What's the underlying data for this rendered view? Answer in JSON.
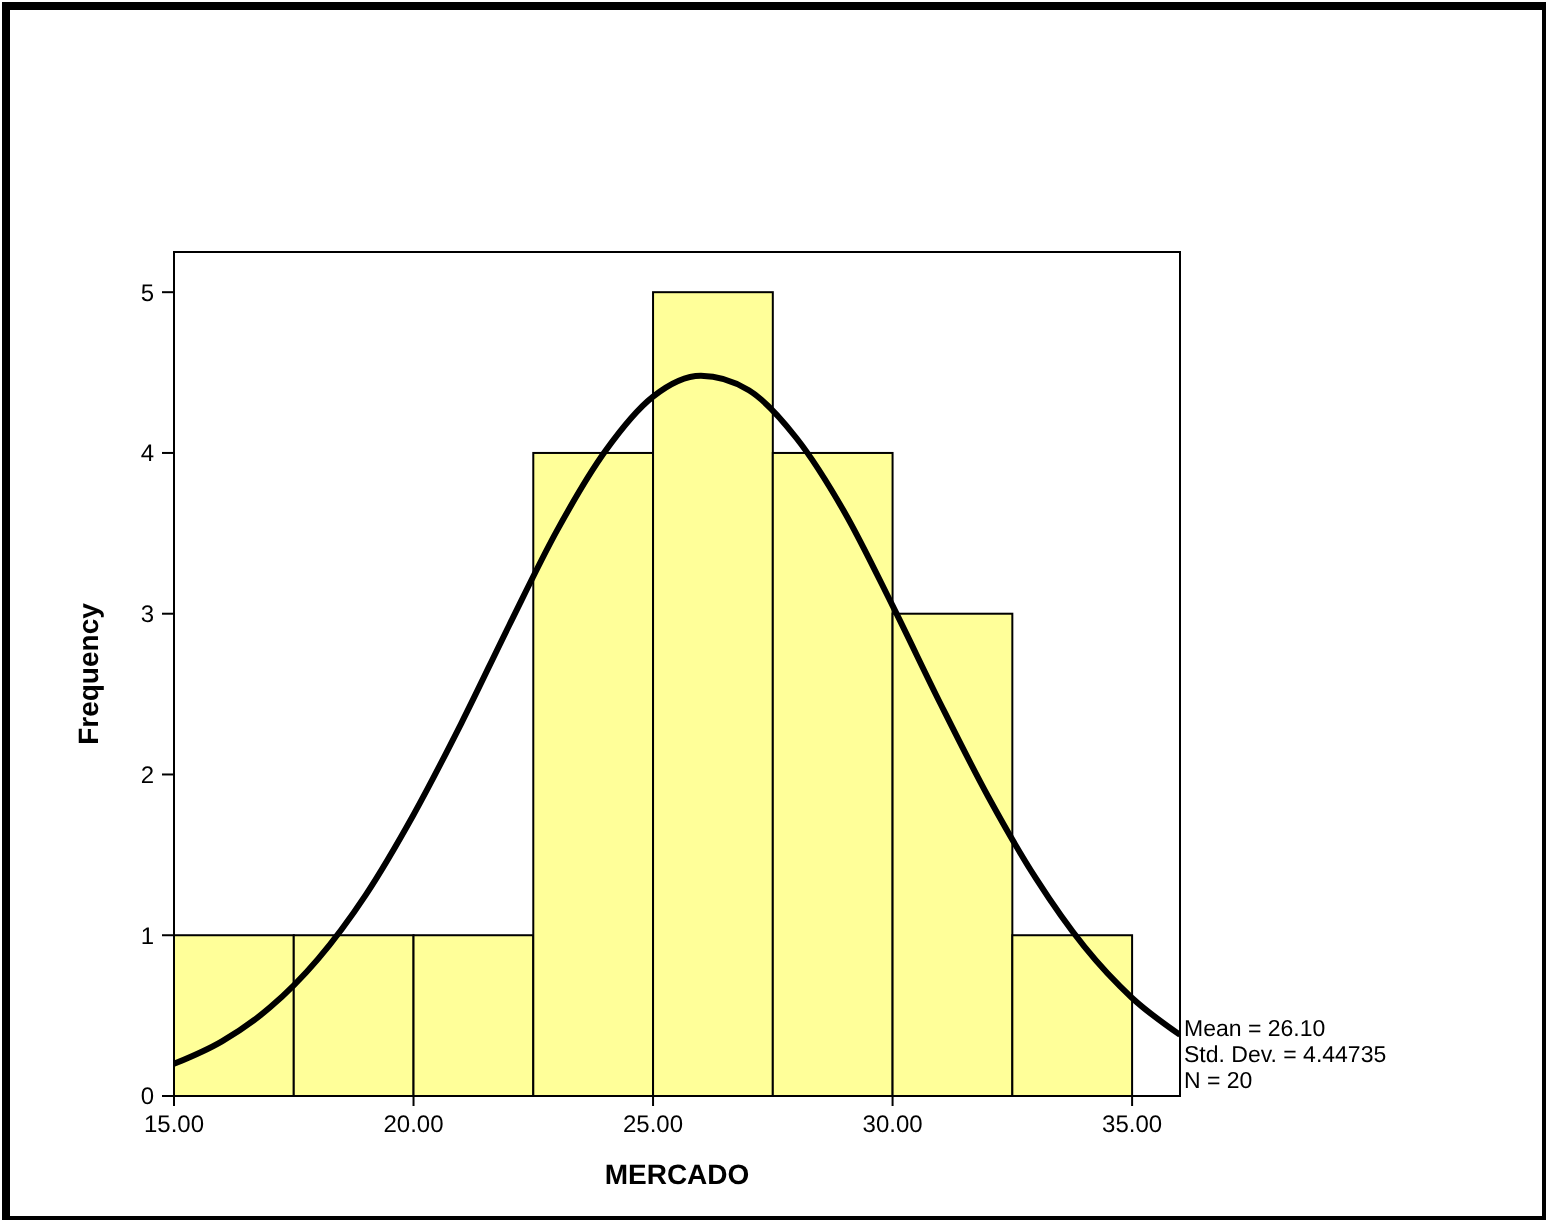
{
  "chart_data": {
    "type": "histogram",
    "xlabel": "MERCADO",
    "ylabel": "Frequency",
    "bins": [
      15,
      17.5,
      20,
      22.5,
      25,
      27.5,
      30,
      32.5,
      35
    ],
    "series": [
      {
        "color": "#ffff99",
        "values": [
          1,
          1,
          1,
          4,
          5,
          4,
          3,
          1
        ]
      },
      {
        "type": "line",
        "color": "#000000",
        "x": [
          15,
          16,
          17,
          18,
          19,
          20,
          21,
          22,
          23,
          24,
          25,
          26,
          27,
          28,
          29,
          30,
          31,
          32,
          33,
          34,
          35,
          36
        ],
        "values": [
          0.2,
          0.34,
          0.55,
          0.85,
          1.25,
          1.75,
          2.32,
          2.93,
          3.52,
          4.01,
          4.35,
          4.48,
          4.39,
          4.09,
          3.63,
          3.05,
          2.44,
          1.86,
          1.35,
          0.93,
          0.61,
          0.38
        ]
      }
    ],
    "xlim": [
      15,
      36
    ],
    "ylim": [
      0,
      5.25
    ],
    "xticks": [
      {
        "value": 15,
        "label": "15.00"
      },
      {
        "value": 20,
        "label": "20.00"
      },
      {
        "value": 25,
        "label": "25.00"
      },
      {
        "value": 30,
        "label": "30.00"
      },
      {
        "value": 35,
        "label": "35.00"
      }
    ],
    "yticks": [
      0,
      1,
      2,
      3,
      4,
      5
    ],
    "marker": "none",
    "line_style": "solid",
    "annotations": [
      "Mean = 26.10",
      "Std. Dev. = 4.44735",
      "N = 20"
    ]
  }
}
